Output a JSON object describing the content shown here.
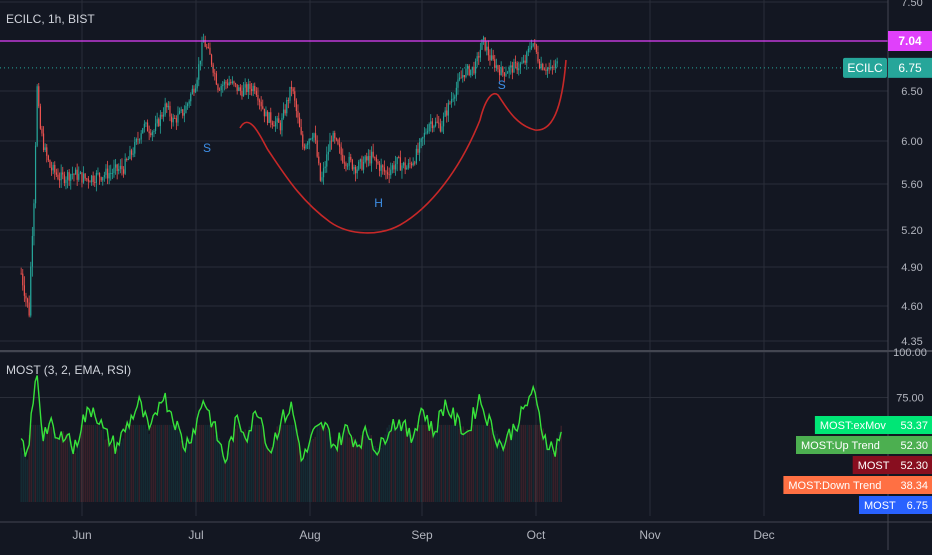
{
  "header": {
    "symbol_label": "ECILC, 1h, BIST",
    "indicator_label": "MOST (3, 2, EMA, RSI)"
  },
  "colors": {
    "background": "#131722",
    "grid": "#2a2e39",
    "resistance": "#e040fb",
    "pattern": "#c62828",
    "pattern_text": "#3d8ee6",
    "candle_up": "#26a69a",
    "candle_down": "#ef5350",
    "most_line": "#37e23a",
    "price_badge": "#26a69a"
  },
  "chart_data": [
    {
      "type": "candlestick",
      "x_ticks": [
        "Jun",
        "Jul",
        "Aug",
        "Sep",
        "Oct",
        "Nov",
        "Dec"
      ],
      "y_ticks": [
        4.35,
        4.6,
        4.9,
        5.2,
        5.6,
        6.0,
        6.5,
        7.5
      ],
      "ylim": [
        4.3,
        7.55
      ],
      "resistance_level": 7.04,
      "last_price": {
        "name": "ECILC",
        "value": 6.75
      },
      "annotations": [
        {
          "text": "S",
          "date": "2022-07-04",
          "price": 5.9
        },
        {
          "text": "H",
          "date": "2022-08-20",
          "price": 5.4
        },
        {
          "text": "S",
          "date": "2022-09-22",
          "price": 6.52
        }
      ],
      "close_series": [
        [
          "2022-05-09",
          4.85
        ],
        [
          "2022-05-11",
          4.65
        ],
        [
          "2022-05-12",
          4.55
        ],
        [
          "2022-05-13",
          5.1
        ],
        [
          "2022-05-14",
          5.55
        ],
        [
          "2022-05-15",
          6.55
        ],
        [
          "2022-05-16",
          6.15
        ],
        [
          "2022-05-18",
          5.9
        ],
        [
          "2022-05-20",
          5.75
        ],
        [
          "2022-05-24",
          5.65
        ],
        [
          "2022-05-28",
          5.7
        ],
        [
          "2022-06-02",
          5.65
        ],
        [
          "2022-06-08",
          5.7
        ],
        [
          "2022-06-12",
          5.75
        ],
        [
          "2022-06-15",
          5.95
        ],
        [
          "2022-06-17",
          6.15
        ],
        [
          "2022-06-20",
          6.1
        ],
        [
          "2022-06-23",
          6.35
        ],
        [
          "2022-06-25",
          6.2
        ],
        [
          "2022-06-28",
          6.3
        ],
        [
          "2022-07-01",
          6.6
        ],
        [
          "2022-07-03",
          7.05
        ],
        [
          "2022-07-05",
          6.85
        ],
        [
          "2022-07-07",
          6.55
        ],
        [
          "2022-07-10",
          6.6
        ],
        [
          "2022-07-13",
          6.5
        ],
        [
          "2022-07-17",
          6.55
        ],
        [
          "2022-07-20",
          6.25
        ],
        [
          "2022-07-24",
          6.15
        ],
        [
          "2022-07-27",
          6.55
        ],
        [
          "2022-07-30",
          5.95
        ],
        [
          "2022-08-02",
          6.1
        ],
        [
          "2022-08-04",
          5.6
        ],
        [
          "2022-08-07",
          6.05
        ],
        [
          "2022-08-10",
          5.85
        ],
        [
          "2022-08-14",
          5.75
        ],
        [
          "2022-08-18",
          5.85
        ],
        [
          "2022-08-22",
          5.7
        ],
        [
          "2022-08-25",
          5.8
        ],
        [
          "2022-08-28",
          5.75
        ],
        [
          "2022-08-31",
          5.9
        ],
        [
          "2022-09-03",
          6.2
        ],
        [
          "2022-09-06",
          6.15
        ],
        [
          "2022-09-09",
          6.45
        ],
        [
          "2022-09-12",
          6.7
        ],
        [
          "2022-09-15",
          6.75
        ],
        [
          "2022-09-17",
          7.05
        ],
        [
          "2022-09-19",
          6.85
        ],
        [
          "2022-09-22",
          6.7
        ],
        [
          "2022-09-25",
          6.75
        ],
        [
          "2022-09-28",
          6.8
        ],
        [
          "2022-09-30",
          7.05
        ],
        [
          "2022-10-02",
          6.8
        ],
        [
          "2022-10-05",
          6.72
        ],
        [
          "2022-10-07",
          6.8
        ]
      ]
    },
    {
      "type": "line",
      "title": "MOST (3, 2, EMA, RSI)",
      "y_ticks": [
        100,
        75
      ],
      "ylim": [
        10,
        100
      ],
      "legend": [
        {
          "name": "MOST:exMov",
          "value": 53.37,
          "color": "#00e676"
        },
        {
          "name": "MOST:Up Trend",
          "value": 52.3,
          "color": "#4caf50"
        },
        {
          "name": "MOST",
          "value": 52.3,
          "color": "#880e1f"
        },
        {
          "name": "MOST:Down Trend",
          "value": 38.34,
          "color": "#ff7043"
        },
        {
          "name": "MOST",
          "value": 6.75,
          "color": "#2962ff"
        }
      ],
      "series": [
        [
          "2022-05-09",
          50
        ],
        [
          "2022-05-11",
          40
        ],
        [
          "2022-05-13",
          65
        ],
        [
          "2022-05-15",
          90
        ],
        [
          "2022-05-17",
          55
        ],
        [
          "2022-05-20",
          60
        ],
        [
          "2022-05-23",
          50
        ],
        [
          "2022-05-26",
          58
        ],
        [
          "2022-05-29",
          45
        ],
        [
          "2022-06-01",
          62
        ],
        [
          "2022-06-04",
          70
        ],
        [
          "2022-06-07",
          55
        ],
        [
          "2022-06-10",
          48
        ],
        [
          "2022-06-13",
          60
        ],
        [
          "2022-06-16",
          72
        ],
        [
          "2022-06-19",
          55
        ],
        [
          "2022-06-22",
          78
        ],
        [
          "2022-06-25",
          65
        ],
        [
          "2022-06-28",
          48
        ],
        [
          "2022-07-01",
          60
        ],
        [
          "2022-07-03",
          75
        ],
        [
          "2022-07-06",
          58
        ],
        [
          "2022-07-09",
          40
        ],
        [
          "2022-07-12",
          62
        ],
        [
          "2022-07-15",
          55
        ],
        [
          "2022-07-18",
          70
        ],
        [
          "2022-07-21",
          45
        ],
        [
          "2022-07-24",
          62
        ],
        [
          "2022-07-27",
          70
        ],
        [
          "2022-07-30",
          40
        ],
        [
          "2022-08-02",
          55
        ],
        [
          "2022-08-05",
          60
        ],
        [
          "2022-08-08",
          48
        ],
        [
          "2022-08-11",
          58
        ],
        [
          "2022-08-14",
          50
        ],
        [
          "2022-08-17",
          56
        ],
        [
          "2022-08-20",
          45
        ],
        [
          "2022-08-23",
          60
        ],
        [
          "2022-08-26",
          62
        ],
        [
          "2022-08-29",
          52
        ],
        [
          "2022-09-01",
          70
        ],
        [
          "2022-09-04",
          55
        ],
        [
          "2022-09-07",
          72
        ],
        [
          "2022-09-10",
          62
        ],
        [
          "2022-09-13",
          55
        ],
        [
          "2022-09-16",
          75
        ],
        [
          "2022-09-19",
          60
        ],
        [
          "2022-09-22",
          48
        ],
        [
          "2022-09-25",
          58
        ],
        [
          "2022-09-28",
          68
        ],
        [
          "2022-09-30",
          80
        ],
        [
          "2022-10-03",
          55
        ],
        [
          "2022-10-06",
          45
        ],
        [
          "2022-10-08",
          58
        ]
      ]
    }
  ]
}
